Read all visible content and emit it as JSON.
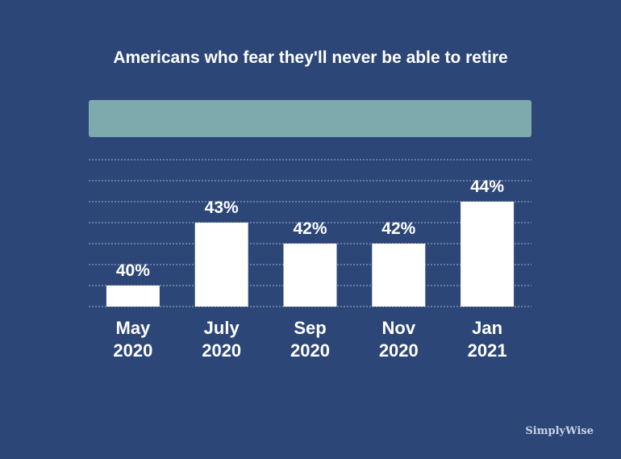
{
  "chart_data": {
    "type": "bar",
    "title": "Americans who fear they'll never be able to retire",
    "categories": [
      [
        "May",
        "2020"
      ],
      [
        "July",
        "2020"
      ],
      [
        "Sep",
        "2020"
      ],
      [
        "Nov",
        "2020"
      ],
      [
        "Jan",
        "2021"
      ]
    ],
    "values": [
      40,
      43,
      42,
      42,
      44
    ],
    "value_labels": [
      "40%",
      "43%",
      "42%",
      "42%",
      "44%"
    ],
    "ylim": [
      39,
      46
    ],
    "grid": true
  },
  "colors": {
    "background": "#2c4677",
    "bar": "#ffffff",
    "legend_bar": "#7ea9ad",
    "gridline": "#9fb2cf"
  },
  "brand": "SimplyWise"
}
